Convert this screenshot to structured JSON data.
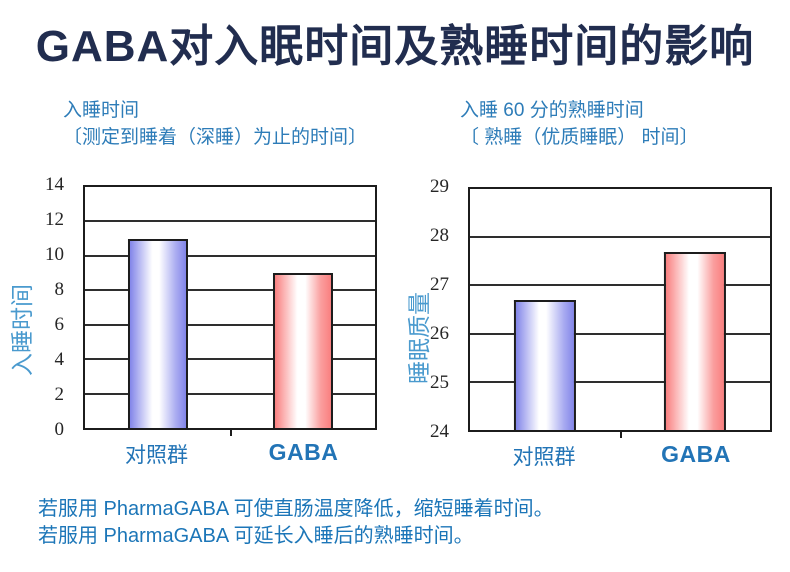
{
  "title": "GABA对入眠时间及熟睡时间的影响",
  "chart_data": [
    {
      "type": "bar",
      "subtitle": "入睡时间",
      "subtitle_note": "〔测定到睡着（深睡）为止的时间〕",
      "ylabel": "入睡时间",
      "categories": [
        "对照群",
        "GABA"
      ],
      "values": [
        11,
        9
      ],
      "ylim": [
        0,
        14
      ],
      "ytick_step": 2,
      "bar_colors": [
        "blue",
        "pink"
      ],
      "grid": true,
      "legend_position": "none"
    },
    {
      "type": "bar",
      "subtitle": "入睡 60 分的熟睡时间",
      "subtitle_note": "〔 熟睡（优质睡眠） 时间〕",
      "ylabel": "睡眠质量",
      "categories": [
        "对照群",
        "GABA"
      ],
      "values": [
        26.7,
        27.7
      ],
      "ylim": [
        24,
        29
      ],
      "ytick_step": 1,
      "bar_colors": [
        "blue",
        "pink"
      ],
      "grid": true,
      "legend_position": "none"
    }
  ],
  "footer": {
    "line1": "若服用 PharmaGABA 可使直肠温度降低，缩短睡着时间。",
    "line2": "若服用 PharmaGABA 可延长入睡后的熟睡时间。"
  },
  "colors": {
    "title": "#212d4f",
    "subtitle": "#2d7cb8",
    "axis_label": "#4a9ace",
    "tick_label": "#262626",
    "category_label": "#2274b6",
    "footer": "#1c76b8",
    "grid": "#2e2e2e",
    "frame": "#1c1c1c",
    "bar_blue": "#8285e9",
    "bar_blue_light": "#aaacf1",
    "bar_pink": "#f97f7f",
    "bar_pink_light": "#fa9e9e",
    "background": "#ffffff"
  }
}
